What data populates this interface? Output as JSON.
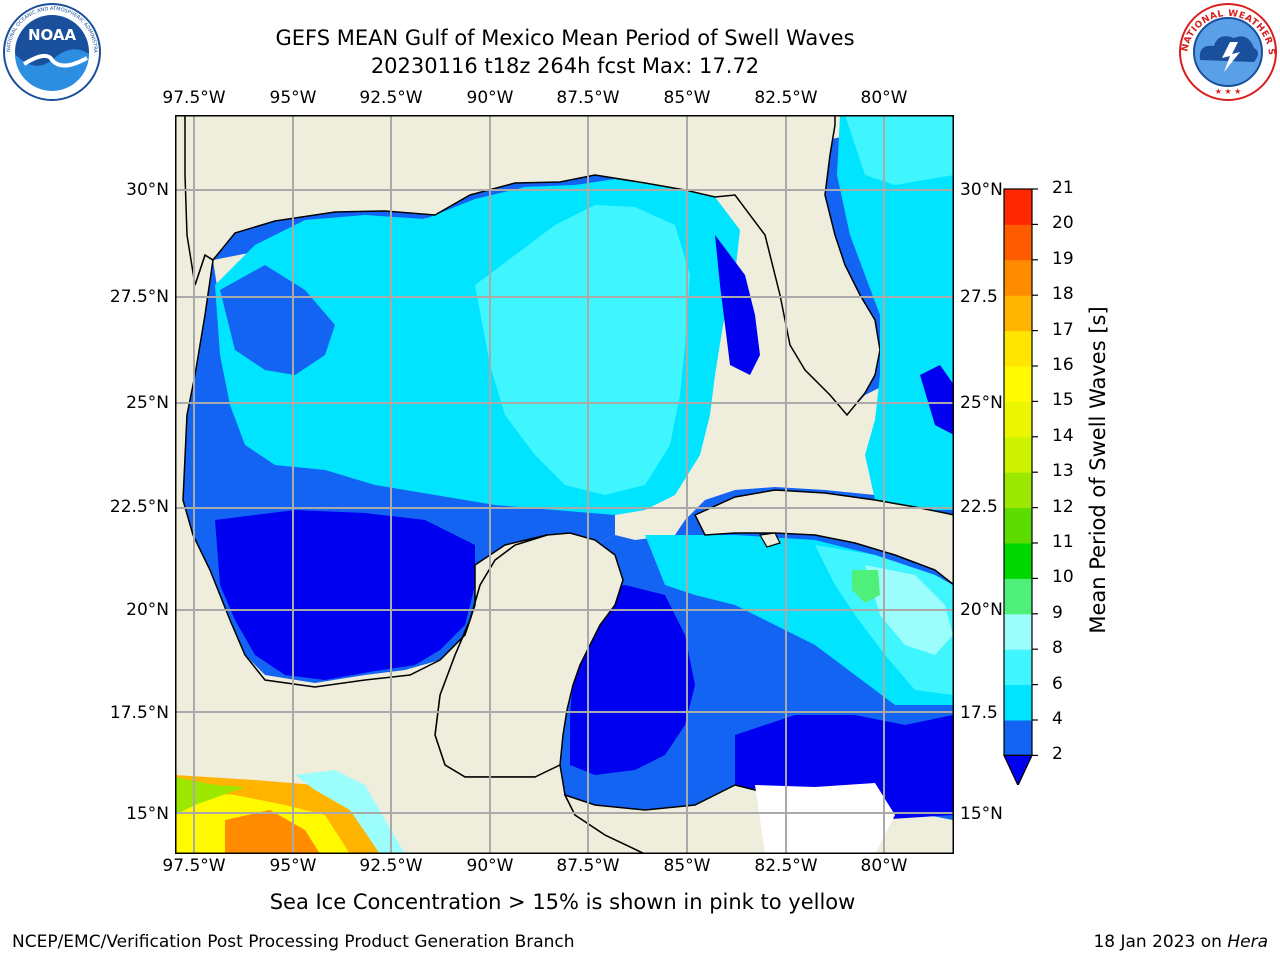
{
  "header": {
    "title": "GEFS MEAN Gulf of Mexico Mean Period of Swell Waves",
    "subtitle": "20230116 t18z 264h fcst   Max: 17.72"
  },
  "logos": {
    "left": {
      "text": "NOAA",
      "ring_text": "NATIONAL OCEANIC AND ATMOSPHERIC ADMINISTRATION · U.S. DEPARTMENT OF COMMERCE"
    },
    "right": {
      "ring_text": "NATIONAL WEATHER SERVICE"
    }
  },
  "map": {
    "lon_ticks": [
      "97.5°W",
      "95°W",
      "92.5°W",
      "90°W",
      "87.5°W",
      "85°W",
      "82.5°W",
      "80°W"
    ],
    "lat_ticks_left": [
      "30°N",
      "27.5°N",
      "25°N",
      "22.5°N",
      "20°N",
      "17.5°N",
      "15°N"
    ],
    "lat_ticks_right": [
      "30°N",
      "27.5",
      "25°N",
      "22.5",
      "20°N",
      "17.5",
      "15°N"
    ],
    "colors": {
      "land": "#efeddb",
      "grid": "#aaaaaa",
      "coast": "#000000"
    }
  },
  "colorbar": {
    "label": "Mean Period of Swell Waves [s]",
    "ticks": [
      "2",
      "4",
      "6",
      "8",
      "9",
      "10",
      "11",
      "12",
      "13",
      "14",
      "15",
      "16",
      "17",
      "18",
      "19",
      "20",
      "21"
    ],
    "colors": [
      "#1464f4",
      "#00e4ff",
      "#3ff6ff",
      "#9cfdfd",
      "#4ff07a",
      "#00d800",
      "#5cdc00",
      "#9ce800",
      "#ccf200",
      "#ecf600",
      "#fffa00",
      "#ffe400",
      "#ffb400",
      "#ff8c00",
      "#ff5c00",
      "#ff2800"
    ],
    "under_color": "#0000f0"
  },
  "caption": "Sea Ice Concentration > 15% is shown in pink to yellow",
  "footer": {
    "left": "NCEP/EMC/Verification Post Processing Product Generation Branch",
    "right_prefix": "18 Jan 2023 on ",
    "right_host": "Hera"
  }
}
